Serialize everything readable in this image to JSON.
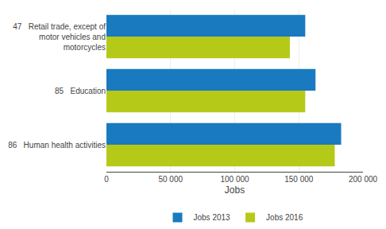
{
  "chart_data": {
    "type": "bar",
    "orientation": "horizontal",
    "categories": [
      "47   Retail trade, except of\n       motor vehicles and\n       motorcycles",
      "85   Education",
      "86   Human health activities"
    ],
    "series": [
      {
        "name": "Jobs 2013",
        "color": "#1a7abf",
        "values": [
          155000,
          163000,
          183000
        ]
      },
      {
        "name": "Jobs 2016",
        "color": "#b5c918",
        "values": [
          143000,
          155000,
          178000
        ]
      }
    ],
    "xlabel": "Jobs",
    "xlim": [
      0,
      200000
    ],
    "xticks": [
      0,
      {
        "value": 50000,
        "label": "50 000"
      },
      {
        "value": 100000,
        "label": "100 000"
      },
      {
        "value": 150000,
        "label": "150 000"
      },
      {
        "value": 200000,
        "label": "200 000"
      }
    ],
    "grid": true,
    "legend": "bottom"
  }
}
